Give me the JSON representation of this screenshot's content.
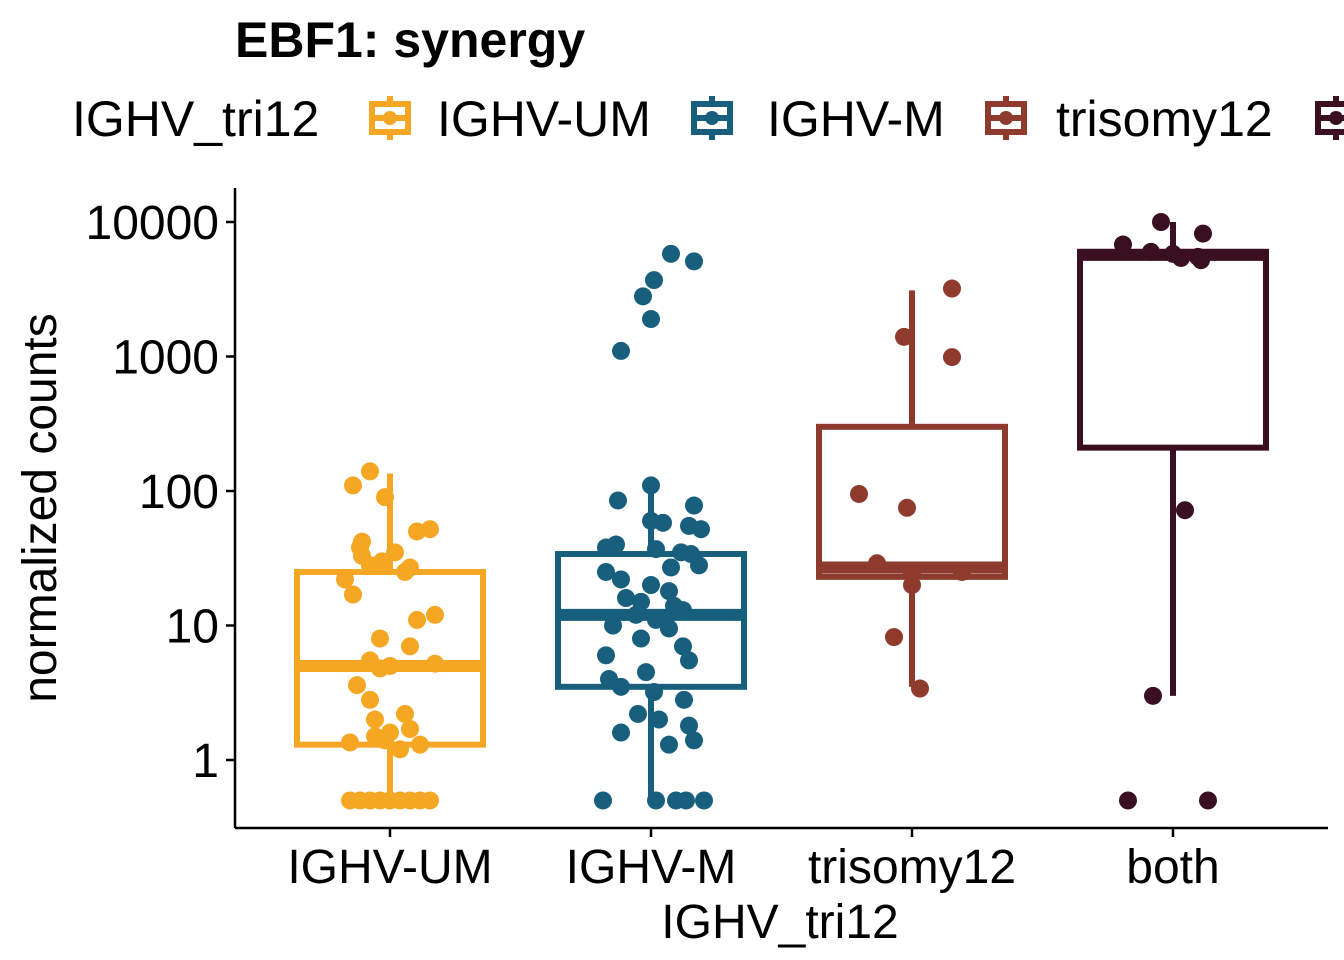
{
  "chart_data": {
    "type": "box",
    "title": "EBF1: synergy",
    "xlabel": "IGHV_tri12",
    "ylabel": "normalized counts",
    "y_scale": "log10",
    "ylim": [
      0.35,
      17000
    ],
    "y_ticks": [
      1,
      10,
      100,
      1000,
      10000
    ],
    "y_tick_labels": [
      "1",
      "10",
      "100",
      "1000",
      "10000"
    ],
    "grid": false,
    "legend": {
      "title": "IGHV_tri12",
      "position": "top",
      "entries": [
        "IGHV-UM",
        "IGHV-M",
        "trisomy12",
        "both"
      ]
    },
    "categories": [
      "IGHV-UM",
      "IGHV-M",
      "trisomy12",
      "both"
    ],
    "colors": [
      "#F5A623",
      "#175F7D",
      "#8E3B2E",
      "#3A1020"
    ],
    "boxes": [
      {
        "name": "IGHV-UM",
        "q1": 1.3,
        "median": 5,
        "q3": 25,
        "whisker_low": 0.5,
        "whisker_high": 135
      },
      {
        "name": "IGHV-M",
        "q1": 3.5,
        "median": 12,
        "q3": 34,
        "whisker_low": 0.5,
        "whisker_high": 110
      },
      {
        "name": "trisomy12",
        "q1": 23,
        "median": 27,
        "q3": 300,
        "whisker_low": 3.5,
        "whisker_high": 3100
      },
      {
        "name": "both",
        "q1": 210,
        "median": 5700,
        "q3": 6000,
        "whisker_low": 3,
        "whisker_high": 10000
      }
    ],
    "points": [
      [
        140,
        110,
        90,
        52,
        50,
        42,
        38,
        35,
        33,
        30,
        28,
        27,
        25,
        22,
        17,
        12,
        11,
        8,
        7,
        5.5,
        5.2,
        5,
        4.8,
        3.6,
        2.8,
        2.2,
        2,
        1.7,
        1.6,
        1.5,
        1.4,
        1.35,
        1.3,
        1.2,
        0.5,
        0.5,
        0.5,
        0.5,
        0.5,
        0.5,
        0.5,
        0.5,
        0.5
      ],
      [
        5800,
        5100,
        3700,
        2800,
        1900,
        1100,
        110,
        85,
        78,
        60,
        58,
        55,
        52,
        40,
        38,
        37,
        35,
        34,
        28,
        27,
        25,
        22,
        20,
        18,
        16,
        15,
        14,
        13,
        12,
        11,
        10,
        9.5,
        8,
        7,
        6,
        5.5,
        4.5,
        4,
        3.5,
        3.2,
        2.8,
        2.2,
        2,
        1.8,
        1.6,
        1.4,
        1.3,
        0.5,
        0.5,
        0.5,
        0.5,
        0.5
      ],
      [
        3200,
        1400,
        990,
        95,
        75,
        29,
        25,
        25,
        20,
        8.2,
        3.4
      ],
      [
        10000,
        8200,
        6800,
        6000,
        5800,
        5500,
        5400,
        5200,
        72,
        3,
        0.5,
        0.5
      ]
    ],
    "point_dx": [
      [
        -20,
        -37,
        -5,
        40,
        27,
        -28,
        -30,
        5,
        -28,
        -8,
        -20,
        20,
        15,
        -45,
        -37,
        45,
        27,
        -10,
        20,
        -20,
        45,
        0,
        -10,
        -33,
        -20,
        15,
        -15,
        20,
        0,
        -15,
        -5,
        -40,
        30,
        10,
        -40,
        -30,
        -20,
        0,
        10,
        20,
        30,
        40,
        -10
      ],
      [
        20,
        43,
        3,
        -8,
        0,
        -30,
        0,
        -33,
        43,
        0,
        12,
        38,
        50,
        -35,
        -45,
        5,
        30,
        40,
        48,
        20,
        -45,
        -30,
        0,
        18,
        -25,
        -10,
        23,
        32,
        -15,
        5,
        -38,
        18,
        -10,
        32,
        -45,
        38,
        -5,
        -42,
        -30,
        3,
        33,
        -13,
        8,
        38,
        -30,
        43,
        18,
        -48,
        5,
        25,
        35,
        53
      ],
      [
        40,
        -8,
        40,
        -53,
        -5,
        -35,
        0,
        50,
        0,
        -18,
        8
      ],
      [
        -12,
        30,
        -50,
        -22,
        0,
        25,
        8,
        28,
        12,
        -20,
        -45,
        35
      ]
    ]
  }
}
